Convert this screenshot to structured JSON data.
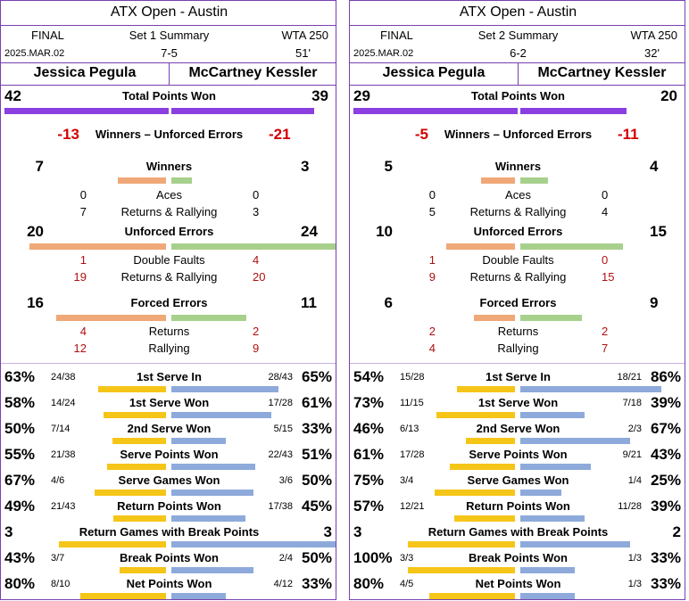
{
  "colors": {
    "border": "#7a3fb0",
    "total_bar": "#8b3fe0",
    "p1_wue": "#f0a878",
    "p2_wue": "#a8d08d",
    "serve_p1": "#f5c518",
    "serve_p2": "#8eaadb",
    "red": "#d40000"
  },
  "panels": [
    {
      "tournament": "ATX Open - Austin",
      "round": "FINAL",
      "summary": "Set 1 Summary",
      "category": "WTA 250",
      "date": "2025.MAR.02",
      "score": "7-5",
      "duration": "51'",
      "p1": "Jessica Pegula",
      "p2": "McCartney Kessler",
      "total_points": {
        "label": "Total Points Won",
        "p1": "42",
        "p2": "39",
        "p1_val": 42,
        "p2_val": 39
      },
      "wue": {
        "label": "Winners – Unforced Errors",
        "p1": "-13",
        "p2": "-21"
      },
      "winners": {
        "label": "Winners",
        "p1": "7",
        "p2": "3",
        "p1_val": 7,
        "p2_val": 3
      },
      "winners_sub": [
        {
          "label": "Aces",
          "p1": "0",
          "p2": "0"
        },
        {
          "label": "Returns & Rallying",
          "p1": "7",
          "p2": "3"
        }
      ],
      "unforced": {
        "label": "Unforced Errors",
        "p1": "20",
        "p2": "24",
        "p1_val": 20,
        "p2_val": 24
      },
      "unforced_sub": [
        {
          "label": "Double Faults",
          "p1": "1",
          "p2": "4"
        },
        {
          "label": "Returns & Rallying",
          "p1": "19",
          "p2": "20"
        }
      ],
      "forced": {
        "label": "Forced Errors",
        "p1": "16",
        "p2": "11",
        "p1_val": 16,
        "p2_val": 11
      },
      "forced_sub": [
        {
          "label": "Returns",
          "p1": "4",
          "p2": "2"
        },
        {
          "label": "Rallying",
          "p1": "12",
          "p2": "9"
        }
      ],
      "stats": [
        {
          "label": "1st Serve In",
          "p1_pct": "63%",
          "p1_frac": "24/38",
          "p2_frac": "28/43",
          "p2_pct": "65%",
          "p1_val": 0.63,
          "p2_val": 0.65
        },
        {
          "label": "1st Serve Won",
          "p1_pct": "58%",
          "p1_frac": "14/24",
          "p2_frac": "17/28",
          "p2_pct": "61%",
          "p1_val": 0.58,
          "p2_val": 0.61
        },
        {
          "label": "2nd Serve Won",
          "p1_pct": "50%",
          "p1_frac": "7/14",
          "p2_frac": "5/15",
          "p2_pct": "33%",
          "p1_val": 0.5,
          "p2_val": 0.33
        },
        {
          "label": "Serve Points Won",
          "p1_pct": "55%",
          "p1_frac": "21/38",
          "p2_frac": "22/43",
          "p2_pct": "51%",
          "p1_val": 0.55,
          "p2_val": 0.51
        },
        {
          "label": "Serve Games Won",
          "p1_pct": "67%",
          "p1_frac": "4/6",
          "p2_frac": "3/6",
          "p2_pct": "50%",
          "p1_val": 0.67,
          "p2_val": 0.5
        },
        {
          "label": "Return Points Won",
          "p1_pct": "49%",
          "p1_frac": "21/43",
          "p2_frac": "17/38",
          "p2_pct": "45%",
          "p1_val": 0.49,
          "p2_val": 0.45
        },
        {
          "label": "Return Games with Break Points",
          "p1_pct": "3",
          "p1_frac": "",
          "p2_frac": "",
          "p2_pct": "3",
          "p1_val": 1.0,
          "p2_val": 1.0
        },
        {
          "label": "Break Points Won",
          "p1_pct": "43%",
          "p1_frac": "3/7",
          "p2_frac": "2/4",
          "p2_pct": "50%",
          "p1_val": 0.43,
          "p2_val": 0.5
        },
        {
          "label": "Net Points Won",
          "p1_pct": "80%",
          "p1_frac": "8/10",
          "p2_frac": "4/12",
          "p2_pct": "33%",
          "p1_val": 0.8,
          "p2_val": 0.33
        }
      ]
    },
    {
      "tournament": "ATX Open - Austin",
      "round": "FINAL",
      "summary": "Set 2 Summary",
      "category": "WTA 250",
      "date": "2025.MAR.02",
      "score": "6-2",
      "duration": "32'",
      "p1": "Jessica Pegula",
      "p2": "McCartney Kessler",
      "total_points": {
        "label": "Total Points Won",
        "p1": "29",
        "p2": "20",
        "p1_val": 29,
        "p2_val": 20
      },
      "wue": {
        "label": "Winners – Unforced Errors",
        "p1": "-5",
        "p2": "-11"
      },
      "winners": {
        "label": "Winners",
        "p1": "5",
        "p2": "4",
        "p1_val": 5,
        "p2_val": 4
      },
      "winners_sub": [
        {
          "label": "Aces",
          "p1": "0",
          "p2": "0"
        },
        {
          "label": "Returns & Rallying",
          "p1": "5",
          "p2": "4"
        }
      ],
      "unforced": {
        "label": "Unforced Errors",
        "p1": "10",
        "p2": "15",
        "p1_val": 10,
        "p2_val": 15
      },
      "unforced_sub": [
        {
          "label": "Double Faults",
          "p1": "1",
          "p2": "0"
        },
        {
          "label": "Returns & Rallying",
          "p1": "9",
          "p2": "15"
        }
      ],
      "forced": {
        "label": "Forced Errors",
        "p1": "6",
        "p2": "9",
        "p1_val": 6,
        "p2_val": 9
      },
      "forced_sub": [
        {
          "label": "Returns",
          "p1": "2",
          "p2": "2"
        },
        {
          "label": "Rallying",
          "p1": "4",
          "p2": "7"
        }
      ],
      "stats": [
        {
          "label": "1st Serve In",
          "p1_pct": "54%",
          "p1_frac": "15/28",
          "p2_frac": "18/21",
          "p2_pct": "86%",
          "p1_val": 0.54,
          "p2_val": 0.86
        },
        {
          "label": "1st Serve Won",
          "p1_pct": "73%",
          "p1_frac": "11/15",
          "p2_frac": "7/18",
          "p2_pct": "39%",
          "p1_val": 0.73,
          "p2_val": 0.39
        },
        {
          "label": "2nd Serve Won",
          "p1_pct": "46%",
          "p1_frac": "6/13",
          "p2_frac": "2/3",
          "p2_pct": "67%",
          "p1_val": 0.46,
          "p2_val": 0.67
        },
        {
          "label": "Serve Points Won",
          "p1_pct": "61%",
          "p1_frac": "17/28",
          "p2_frac": "9/21",
          "p2_pct": "43%",
          "p1_val": 0.61,
          "p2_val": 0.43
        },
        {
          "label": "Serve Games Won",
          "p1_pct": "75%",
          "p1_frac": "3/4",
          "p2_frac": "1/4",
          "p2_pct": "25%",
          "p1_val": 0.75,
          "p2_val": 0.25
        },
        {
          "label": "Return Points Won",
          "p1_pct": "57%",
          "p1_frac": "12/21",
          "p2_frac": "11/28",
          "p2_pct": "39%",
          "p1_val": 0.57,
          "p2_val": 0.39
        },
        {
          "label": "Return Games with Break Points",
          "p1_pct": "3",
          "p1_frac": "",
          "p2_frac": "",
          "p2_pct": "2",
          "p1_val": 1.0,
          "p2_val": 0.67
        },
        {
          "label": "Break Points Won",
          "p1_pct": "100%",
          "p1_frac": "3/3",
          "p2_frac": "1/3",
          "p2_pct": "33%",
          "p1_val": 1.0,
          "p2_val": 0.33
        },
        {
          "label": "Net Points Won",
          "p1_pct": "80%",
          "p1_frac": "4/5",
          "p2_frac": "1/3",
          "p2_pct": "33%",
          "p1_val": 0.8,
          "p2_val": 0.33
        }
      ]
    }
  ]
}
